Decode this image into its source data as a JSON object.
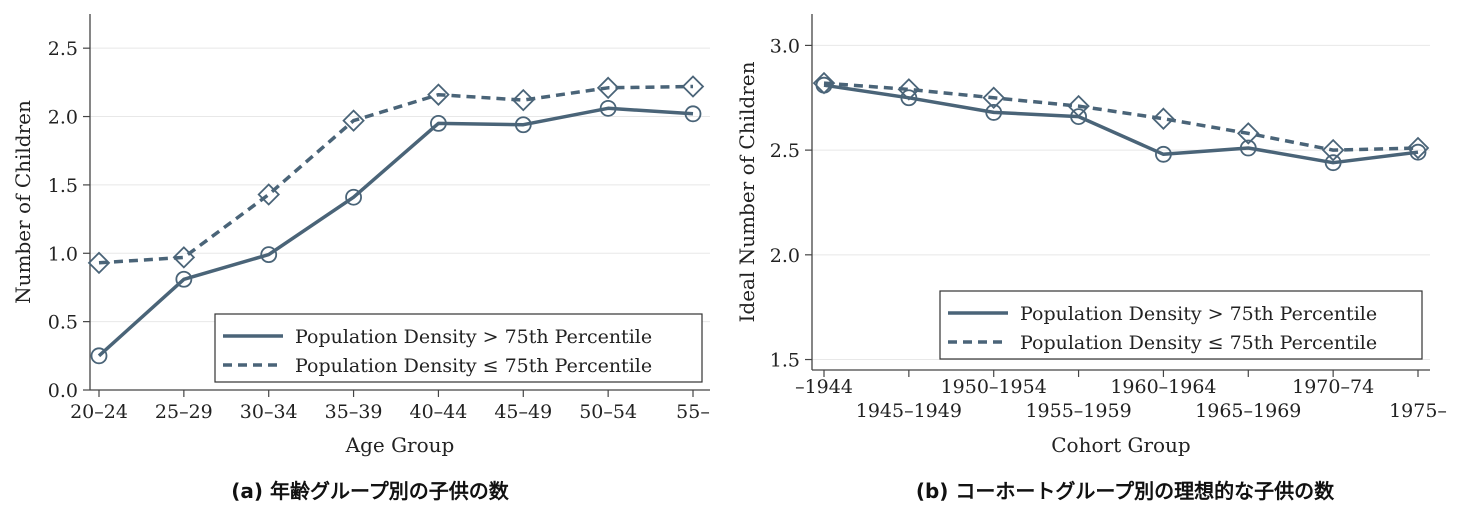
{
  "style": {
    "series_color": "#4a6478",
    "grid_color": "#e8e8e8",
    "axis_color": "#444444"
  },
  "chart_data": [
    {
      "type": "line",
      "caption": "(a) 年齢グループ別の子供の数",
      "xlabel": "Age Group",
      "ylabel": "Number of Children",
      "categories": [
        "20–24",
        "25–29",
        "30–34",
        "35–39",
        "40–44",
        "45–49",
        "50–54",
        "55–"
      ],
      "ylim": [
        0,
        2.75
      ],
      "yticks": [
        "0.0",
        "0.5",
        "1.0",
        "1.5",
        "2.0",
        "2.5"
      ],
      "grid": true,
      "legend_position": "bottom-right",
      "series": [
        {
          "name": "Population Density > 75th Percentile",
          "line": "solid",
          "marker": "circle",
          "values": [
            0.25,
            0.81,
            0.99,
            1.41,
            1.95,
            1.94,
            2.06,
            2.02
          ]
        },
        {
          "name": "Population Density ≤ 75th Percentile",
          "line": "dashed",
          "marker": "diamond",
          "values": [
            0.93,
            0.97,
            1.43,
            1.97,
            2.16,
            2.12,
            2.21,
            2.22
          ]
        }
      ]
    },
    {
      "type": "line",
      "caption": "(b) コーホートグループ別の理想的な子供の数",
      "xlabel": "Cohort Group",
      "ylabel": "Ideal Number of Children",
      "categories": [
        "–1944",
        "1945–1949",
        "1950–1954",
        "1955–1959",
        "1960–1964",
        "1965–1969",
        "1970–74",
        "1975–"
      ],
      "ylim": [
        1.45,
        3.15
      ],
      "yticks": [
        "1.5",
        "2.0",
        "2.5",
        "3.0"
      ],
      "grid": true,
      "legend_position": "bottom-right",
      "series": [
        {
          "name": "Population Density > 75th Percentile",
          "line": "solid",
          "marker": "circle",
          "values": [
            2.81,
            2.75,
            2.68,
            2.66,
            2.48,
            2.51,
            2.44,
            2.49
          ]
        },
        {
          "name": "Population Density ≤ 75th Percentile",
          "line": "dashed",
          "marker": "diamond",
          "values": [
            2.82,
            2.79,
            2.75,
            2.71,
            2.65,
            2.58,
            2.5,
            2.51
          ]
        }
      ]
    }
  ]
}
